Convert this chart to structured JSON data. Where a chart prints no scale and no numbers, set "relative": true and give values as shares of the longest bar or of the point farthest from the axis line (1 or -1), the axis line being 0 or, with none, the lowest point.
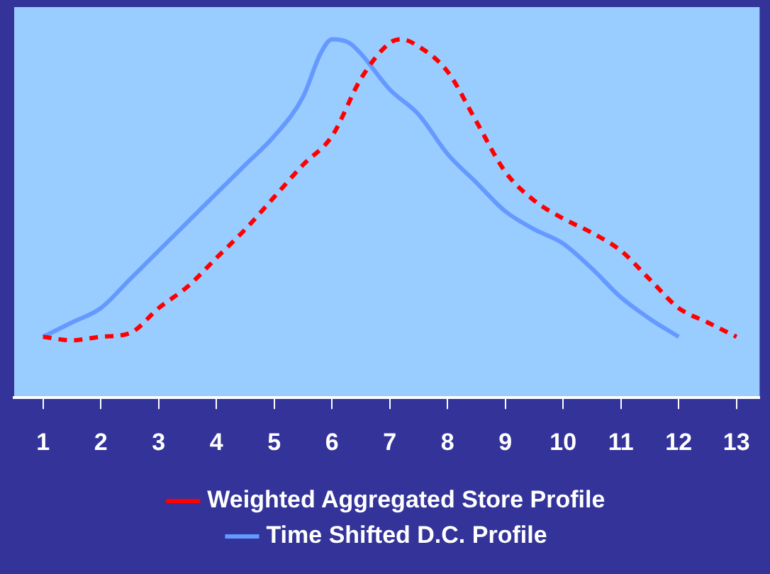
{
  "chart_data": {
    "type": "line",
    "relative": true,
    "xlim": [
      0.5,
      13.4
    ],
    "xticks": [
      1,
      2,
      3,
      4,
      5,
      6,
      7,
      8,
      9,
      10,
      11,
      12,
      13
    ],
    "grid": false,
    "legend": "bottom",
    "marker": "none",
    "series": [
      {
        "name": "Weighted Aggregated Store Profile",
        "color": "#ff0000",
        "line_style": "dashed",
        "x": [
          1,
          1.5,
          2,
          2.5,
          3,
          3.5,
          4,
          4.5,
          5,
          5.5,
          6,
          6.5,
          7,
          7.2,
          7.5,
          8,
          8.5,
          9,
          9.5,
          10,
          10.5,
          11,
          11.5,
          12,
          12.5,
          13
        ],
        "values": [
          0.17,
          0.16,
          0.17,
          0.18,
          0.25,
          0.31,
          0.39,
          0.47,
          0.56,
          0.65,
          0.73,
          0.89,
          0.99,
          1,
          0.98,
          0.91,
          0.77,
          0.63,
          0.55,
          0.5,
          0.46,
          0.41,
          0.33,
          0.25,
          0.21,
          0.17
        ]
      },
      {
        "name": "Time Shifted D.C. Profile",
        "color": "#6699ff",
        "line_style": "solid",
        "x": [
          1,
          1.5,
          2,
          2.5,
          3,
          3.5,
          4,
          4.5,
          5,
          5.5,
          5.8,
          6,
          6.3,
          6.5,
          7,
          7.5,
          8,
          8.5,
          9,
          9.5,
          10,
          10.5,
          11,
          11.5,
          12
        ],
        "values": [
          0.17,
          0.21,
          0.25,
          0.33,
          0.41,
          0.49,
          0.57,
          0.65,
          0.73,
          0.84,
          0.96,
          1,
          0.99,
          0.96,
          0.86,
          0.79,
          0.68,
          0.6,
          0.52,
          0.47,
          0.43,
          0.36,
          0.28,
          0.22,
          0.17
        ]
      }
    ]
  }
}
